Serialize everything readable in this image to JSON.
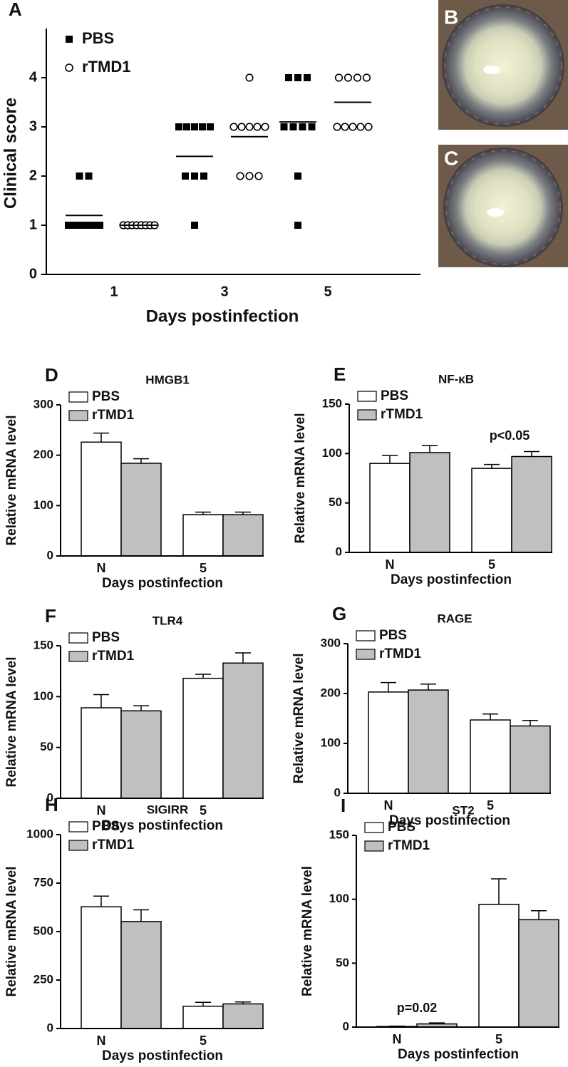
{
  "chart_data": [
    {
      "type": "dot",
      "panel": "A",
      "y_label": "Clinical score",
      "x_label": "Days postinfection",
      "categories": [
        "1",
        "3",
        "5"
      ],
      "ylim": [
        0,
        5
      ],
      "yticks": [
        0,
        1,
        2,
        3,
        4
      ],
      "series": [
        {
          "name": "PBS",
          "marker": "square",
          "color": "#000000",
          "values": [
            [
              2,
              2,
              1,
              1,
              1,
              1,
              1,
              1,
              1,
              1
            ],
            [
              3,
              3,
              3,
              3,
              3,
              2,
              2,
              2,
              1
            ],
            [
              4,
              4,
              4,
              3,
              3,
              3,
              3,
              2,
              1
            ]
          ],
          "means": [
            1.2,
            2.4,
            3.1
          ]
        },
        {
          "name": "rTMD1",
          "marker": "circle",
          "color": "#000000",
          "values": [
            [
              1,
              1,
              1,
              1,
              1,
              1,
              1,
              1
            ],
            [
              4,
              3,
              3,
              3,
              3,
              3,
              2,
              2,
              2
            ],
            [
              4,
              4,
              4,
              4,
              3,
              3,
              3,
              3,
              3
            ]
          ],
          "means": [
            1.0,
            2.8,
            3.5
          ]
        }
      ]
    },
    {
      "type": "bar",
      "panel": "D",
      "title": "HMGB1",
      "y_label": "Relative mRNA level",
      "x_label": "Days postinfection",
      "categories": [
        "N",
        "5"
      ],
      "ylim": [
        0,
        300
      ],
      "yticks": [
        0,
        100,
        200,
        300
      ],
      "series": [
        {
          "name": "PBS",
          "color": "#ffffff",
          "values": [
            226,
            82
          ],
          "errors": [
            18,
            5
          ]
        },
        {
          "name": "rTMD1",
          "color": "#c0c0c0",
          "values": [
            184,
            82
          ],
          "errors": [
            9,
            5
          ]
        }
      ]
    },
    {
      "type": "bar",
      "panel": "E",
      "title": "NF-κB",
      "y_label": "Relative mRNA level",
      "x_label": "Days postinfection",
      "categories": [
        "N",
        "5"
      ],
      "ylim": [
        0,
        150
      ],
      "yticks": [
        0,
        50,
        100,
        150
      ],
      "annotations": [
        "p<0.05"
      ],
      "series": [
        {
          "name": "PBS",
          "color": "#ffffff",
          "values": [
            90,
            85
          ],
          "errors": [
            8,
            4
          ]
        },
        {
          "name": "rTMD1",
          "color": "#c0c0c0",
          "values": [
            101,
            97
          ],
          "errors": [
            7,
            5
          ]
        }
      ]
    },
    {
      "type": "bar",
      "panel": "F",
      "title": "TLR4",
      "y_label": "Relative mRNA level",
      "x_label": "Days postinfection",
      "categories": [
        "N",
        "5"
      ],
      "ylim": [
        0,
        150
      ],
      "yticks": [
        0,
        50,
        100,
        150
      ],
      "series": [
        {
          "name": "PBS",
          "color": "#ffffff",
          "values": [
            89,
            118
          ],
          "errors": [
            13,
            4
          ]
        },
        {
          "name": "rTMD1",
          "color": "#c0c0c0",
          "values": [
            86,
            133
          ],
          "errors": [
            5,
            10
          ]
        }
      ]
    },
    {
      "type": "bar",
      "panel": "G",
      "title": "RAGE",
      "y_label": "Relative mRNA level",
      "x_label": "Days postinfection",
      "categories": [
        "N",
        "5"
      ],
      "ylim": [
        0,
        300
      ],
      "yticks": [
        0,
        100,
        200,
        300
      ],
      "series": [
        {
          "name": "PBS",
          "color": "#ffffff",
          "values": [
            203,
            147
          ],
          "errors": [
            19,
            12
          ]
        },
        {
          "name": "rTMD1",
          "color": "#c0c0c0",
          "values": [
            207,
            135
          ],
          "errors": [
            12,
            11
          ]
        }
      ]
    },
    {
      "type": "bar",
      "panel": "H",
      "title": "SIGIRR",
      "y_label": "Relative mRNA level",
      "x_label": "Days postinfection",
      "categories": [
        "N",
        "5"
      ],
      "ylim": [
        0,
        1000
      ],
      "yticks": [
        0,
        250,
        500,
        750,
        1000
      ],
      "series": [
        {
          "name": "PBS",
          "color": "#ffffff",
          "values": [
            628,
            115
          ],
          "errors": [
            55,
            20
          ]
        },
        {
          "name": "rTMD1",
          "color": "#c0c0c0",
          "values": [
            552,
            127
          ],
          "errors": [
            60,
            10
          ]
        }
      ]
    },
    {
      "type": "bar",
      "panel": "I",
      "title": "ST2",
      "y_label": "Relative mRNA level",
      "x_label": "Days postinfection",
      "categories": [
        "N",
        "5"
      ],
      "ylim": [
        0,
        150
      ],
      "yticks": [
        0,
        50,
        100,
        150
      ],
      "annotations": [
        "p=0.02"
      ],
      "series": [
        {
          "name": "PBS",
          "color": "#ffffff",
          "values": [
            0.5,
            96
          ],
          "errors": [
            0.3,
            20
          ]
        },
        {
          "name": "rTMD1",
          "color": "#c0c0c0",
          "values": [
            2.5,
            84
          ],
          "errors": [
            0.8,
            7
          ]
        }
      ]
    }
  ],
  "images": [
    {
      "label": "B"
    },
    {
      "label": "C"
    }
  ]
}
